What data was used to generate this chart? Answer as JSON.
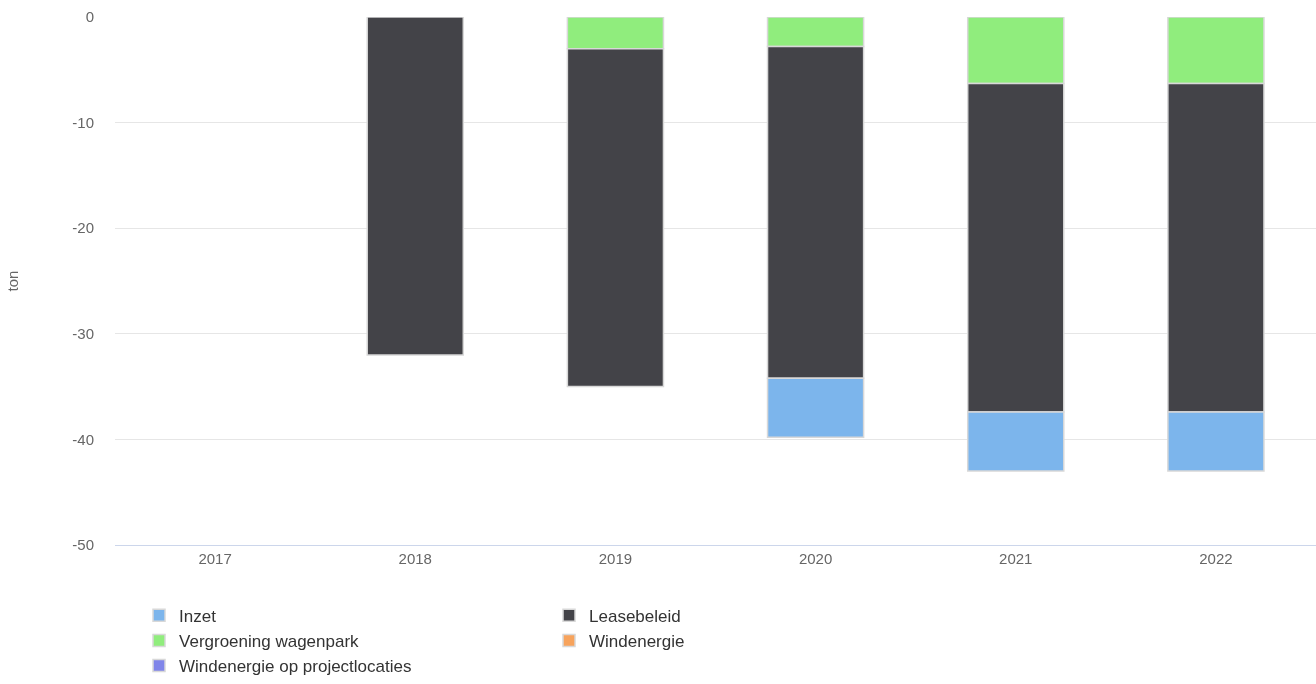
{
  "chart_data": {
    "type": "bar",
    "ylabel": "ton",
    "categories": [
      "2017",
      "2018",
      "2019",
      "2020",
      "2021",
      "2022"
    ],
    "stacked": true,
    "ylim": [
      -50,
      0
    ],
    "yticks": [
      -50,
      -40,
      -30,
      -20,
      -10,
      0
    ],
    "grid": "y",
    "legend": "bottom",
    "series": [
      {
        "name": "Vergroening wagenpark",
        "color": "#90ed7d",
        "values": [
          null,
          null,
          -3,
          -2.8,
          -6.3,
          -6.3
        ]
      },
      {
        "name": "Leasebeleid",
        "color": "#434348",
        "values": [
          null,
          -32,
          -32,
          -31.4,
          -31.1,
          -31.1
        ]
      },
      {
        "name": "Inzet",
        "color": "#7cb5ec",
        "values": [
          null,
          null,
          null,
          -5.6,
          -5.6,
          -5.6
        ]
      },
      {
        "name": "Windenergie",
        "color": "#f7a35c",
        "values": [
          null,
          null,
          null,
          null,
          null,
          null
        ]
      },
      {
        "name": "Windenergie op projectlocaties",
        "color": "#8085e9",
        "values": [
          null,
          null,
          null,
          null,
          null,
          null
        ]
      }
    ]
  }
}
